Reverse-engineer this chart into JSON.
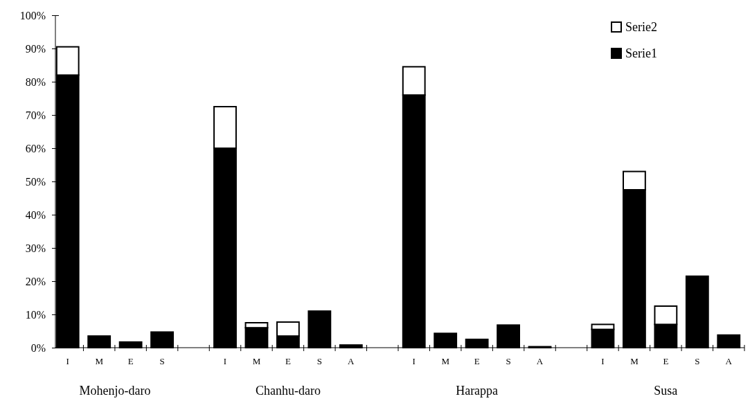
{
  "chart_data": {
    "type": "bar",
    "stacked": true,
    "legend": "top right",
    "categories": [
      "I",
      "M",
      "E",
      "S",
      null,
      "I",
      "M",
      "E",
      "S",
      "A",
      null,
      "I",
      "M",
      "E",
      "S",
      "A",
      null,
      "I",
      "M",
      "E",
      "S",
      "A"
    ],
    "series": [
      {
        "name": "Serie1",
        "color": "#000000",
        "values": [
          82,
          3.5,
          1.7,
          4.7,
          null,
          60,
          6,
          3.5,
          11,
          0.8,
          null,
          76,
          4.3,
          2.5,
          6.8,
          0.3,
          null,
          5.5,
          47.5,
          7,
          21.5,
          3.8
        ]
      },
      {
        "name": "Serie2",
        "color": "#ffffff",
        "values": [
          8.5,
          null,
          null,
          null,
          null,
          12.5,
          1.5,
          4.2,
          null,
          null,
          null,
          8.5,
          null,
          null,
          null,
          null,
          null,
          1.5,
          5.5,
          5.5,
          null,
          null
        ]
      }
    ],
    "ylim": [
      0,
      100
    ],
    "yticks": [
      {
        "value": 0,
        "label": "0%"
      },
      {
        "value": 10,
        "label": "10%"
      },
      {
        "value": 20,
        "label": "20%"
      },
      {
        "value": 30,
        "label": "30%"
      },
      {
        "value": 40,
        "label": "40%"
      },
      {
        "value": 50,
        "label": "50%"
      },
      {
        "value": 60,
        "label": "60%"
      },
      {
        "value": 70,
        "label": "70%"
      },
      {
        "value": 80,
        "label": "80%"
      },
      {
        "value": 90,
        "label": "90%"
      },
      {
        "value": 100,
        "label": "100%"
      }
    ],
    "annotations": [
      "Mohenjo-daro",
      "Chanhu-daro",
      "Harappa",
      "Susa"
    ]
  }
}
